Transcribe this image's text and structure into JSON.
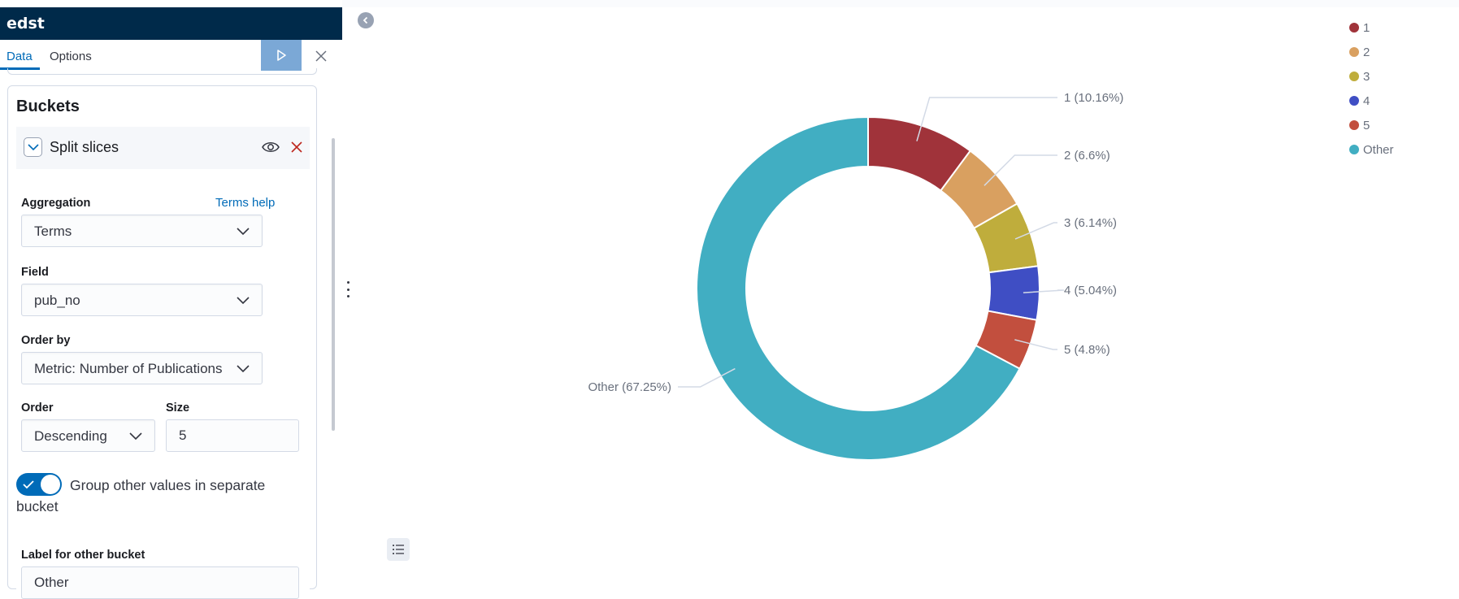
{
  "header": {
    "title": "edst"
  },
  "tabs": [
    {
      "label": "Data"
    },
    {
      "label": "Options"
    }
  ],
  "buckets": {
    "title": "Buckets",
    "aggregation_title": "Split slices",
    "aggregation": {
      "label": "Aggregation",
      "help": "Terms help",
      "value": "Terms"
    },
    "field": {
      "label": "Field",
      "value": "pub_no"
    },
    "order_by": {
      "label": "Order by",
      "value": "Metric: Number of Publications"
    },
    "order": {
      "label": "Order",
      "value": "Descending"
    },
    "size": {
      "label": "Size",
      "value": "5"
    },
    "group_other": {
      "label": "Group other values in separate bucket",
      "enabled": true
    },
    "other_bucket": {
      "label": "Label for other bucket",
      "value": "Other"
    }
  },
  "colors": {
    "accent": "#006bb8",
    "header_bg": "#002a4a"
  },
  "chart_data": {
    "type": "pie",
    "donut": true,
    "slices": [
      {
        "name": "1",
        "percent": 10.16,
        "label": "1 (10.16%)",
        "color": "#a0333a"
      },
      {
        "name": "2",
        "percent": 6.6,
        "label": "2 (6.6%)",
        "color": "#d9a060"
      },
      {
        "name": "3",
        "percent": 6.14,
        "label": "3 (6.14%)",
        "color": "#bfad3c"
      },
      {
        "name": "4",
        "percent": 5.04,
        "label": "4 (5.04%)",
        "color": "#3f4ec4"
      },
      {
        "name": "5",
        "percent": 4.8,
        "label": "5 (4.8%)",
        "color": "#c24f3e"
      },
      {
        "name": "Other",
        "percent": 67.25,
        "label": "Other (67.25%)",
        "color": "#41aec2"
      }
    ],
    "legend_placement": "top-right"
  }
}
